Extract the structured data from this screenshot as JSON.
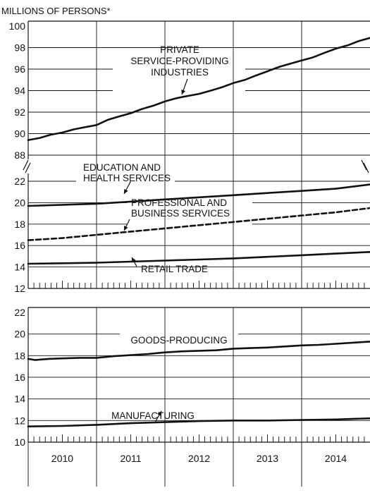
{
  "chart_data": [
    {
      "type": "line",
      "panel": "upper",
      "ylabel": "MILLIONS OF PERSONS*",
      "x_labels": [
        "2010",
        "2011",
        "2012",
        "2013",
        "2014"
      ],
      "axis_break": "between 88 and 22",
      "yticks_top": [
        88,
        90,
        92,
        94,
        96,
        98,
        100
      ],
      "yticks_bottom": [
        12,
        14,
        16,
        18,
        20,
        22
      ],
      "series": [
        {
          "name": "PRIVATE SERVICE-PROVIDING INDUSTRIES",
          "label_lines": [
            "PRIVATE",
            "SERVICE-PROVIDING",
            "INDUSTRIES"
          ],
          "style": "solid",
          "x": [
            2010.0,
            2010.17,
            2010.33,
            2010.5,
            2010.67,
            2010.83,
            2011.0,
            2011.17,
            2011.33,
            2011.5,
            2011.67,
            2011.83,
            2012.0,
            2012.17,
            2012.33,
            2012.5,
            2012.67,
            2012.83,
            2013.0,
            2013.17,
            2013.33,
            2013.5,
            2013.67,
            2013.83,
            2014.0,
            2014.17,
            2014.33,
            2014.5,
            2014.67,
            2014.83,
            2015.0
          ],
          "y": [
            89.4,
            89.6,
            89.9,
            90.1,
            90.4,
            90.6,
            90.8,
            91.3,
            91.6,
            91.9,
            92.3,
            92.6,
            93.0,
            93.3,
            93.5,
            93.7,
            94.0,
            94.3,
            94.7,
            95.0,
            95.4,
            95.8,
            96.2,
            96.5,
            96.8,
            97.1,
            97.5,
            97.9,
            98.2,
            98.6,
            98.9
          ]
        },
        {
          "name": "EDUCATION AND HEALTH SERVICES",
          "label_lines": [
            "EDUCATION AND",
            "HEALTH SERVICES"
          ],
          "style": "solid",
          "x": [
            2010.0,
            2010.5,
            2011.0,
            2011.5,
            2012.0,
            2012.5,
            2013.0,
            2013.5,
            2014.0,
            2014.5,
            2015.0
          ],
          "y": [
            19.7,
            19.8,
            19.9,
            20.1,
            20.3,
            20.5,
            20.7,
            20.9,
            21.1,
            21.3,
            21.7
          ]
        },
        {
          "name": "PROFESSIONAL AND BUSINESS SERVICES",
          "label_lines": [
            "PROFESSIONAL AND",
            "BUSINESS SERVICES"
          ],
          "style": "dashed",
          "x": [
            2010.0,
            2010.5,
            2011.0,
            2011.5,
            2012.0,
            2012.5,
            2013.0,
            2013.5,
            2014.0,
            2014.5,
            2015.0
          ],
          "y": [
            16.5,
            16.7,
            17.0,
            17.3,
            17.6,
            17.9,
            18.2,
            18.5,
            18.8,
            19.1,
            19.5
          ]
        },
        {
          "name": "RETAIL TRADE",
          "label_lines": [
            "RETAIL TRADE"
          ],
          "style": "solid",
          "x": [
            2010.0,
            2010.5,
            2011.0,
            2011.5,
            2012.0,
            2012.5,
            2013.0,
            2013.5,
            2014.0,
            2014.5,
            2015.0
          ],
          "y": [
            14.3,
            14.35,
            14.4,
            14.5,
            14.6,
            14.7,
            14.8,
            14.95,
            15.1,
            15.25,
            15.4
          ]
        }
      ]
    },
    {
      "type": "line",
      "panel": "lower",
      "x_labels": [
        "2010",
        "2011",
        "2012",
        "2013",
        "2014"
      ],
      "yticks": [
        10,
        12,
        14,
        16,
        18,
        20,
        22
      ],
      "ylim": [
        10,
        22
      ],
      "series": [
        {
          "name": "GOODS-PRODUCING",
          "label_lines": [
            "GOODS-PRODUCING"
          ],
          "style": "solid",
          "x": [
            2010.0,
            2010.1,
            2010.3,
            2010.5,
            2010.75,
            2011.0,
            2011.25,
            2011.5,
            2011.75,
            2012.0,
            2012.25,
            2012.5,
            2012.75,
            2013.0,
            2013.25,
            2013.5,
            2013.75,
            2014.0,
            2014.25,
            2014.5,
            2014.75,
            2015.0
          ],
          "y": [
            17.7,
            17.6,
            17.7,
            17.75,
            17.8,
            17.8,
            17.95,
            18.05,
            18.15,
            18.3,
            18.4,
            18.45,
            18.5,
            18.65,
            18.7,
            18.75,
            18.85,
            18.95,
            19.0,
            19.1,
            19.2,
            19.3
          ]
        },
        {
          "name": "MANUFACTURING",
          "label_lines": [
            "MANUFACTURING"
          ],
          "style": "solid",
          "x": [
            2010.0,
            2010.5,
            2011.0,
            2011.5,
            2012.0,
            2012.5,
            2013.0,
            2013.5,
            2014.0,
            2014.5,
            2015.0
          ],
          "y": [
            11.45,
            11.5,
            11.6,
            11.75,
            11.85,
            11.95,
            12.0,
            12.0,
            12.05,
            12.1,
            12.2
          ]
        }
      ]
    }
  ]
}
